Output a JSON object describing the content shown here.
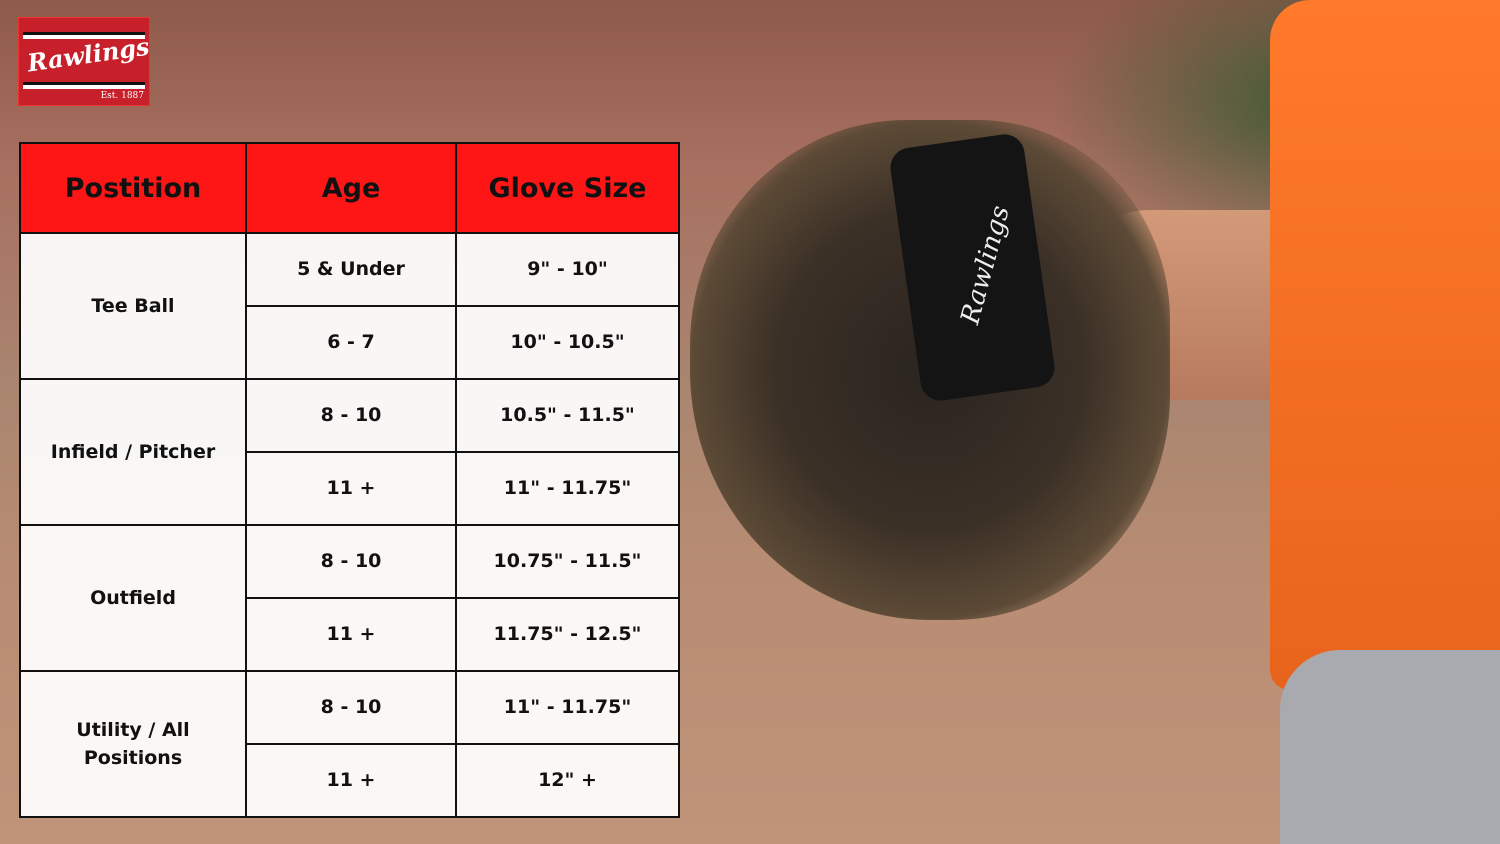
{
  "brand": {
    "name": "Rawlings",
    "est": "Est. 1887",
    "color": "#c8202a"
  },
  "background": {
    "strap_text": "Rawlings"
  },
  "table": {
    "header_color": "#fe1616",
    "headers": [
      "Postition",
      "Age",
      "Glove Size"
    ],
    "groups": [
      {
        "position": "Tee Ball",
        "rows": [
          {
            "age": "5 & Under",
            "size": "9\" - 10\""
          },
          {
            "age": "6 - 7",
            "size": "10\" - 10.5\""
          }
        ]
      },
      {
        "position": "Infield / Pitcher",
        "rows": [
          {
            "age": "8 - 10",
            "size": "10.5\" - 11.5\""
          },
          {
            "age": "11 +",
            "size": "11\" - 11.75\""
          }
        ]
      },
      {
        "position": "Outfield",
        "rows": [
          {
            "age": "8 - 10",
            "size": "10.75\" - 11.5\""
          },
          {
            "age": "11 +",
            "size": "11.75\" - 12.5\""
          }
        ]
      },
      {
        "position": "Utility / All Positions",
        "rows": [
          {
            "age": "8 - 10",
            "size": "11\" - 11.75\""
          },
          {
            "age": "11 +",
            "size": "12\" +"
          }
        ]
      }
    ]
  }
}
